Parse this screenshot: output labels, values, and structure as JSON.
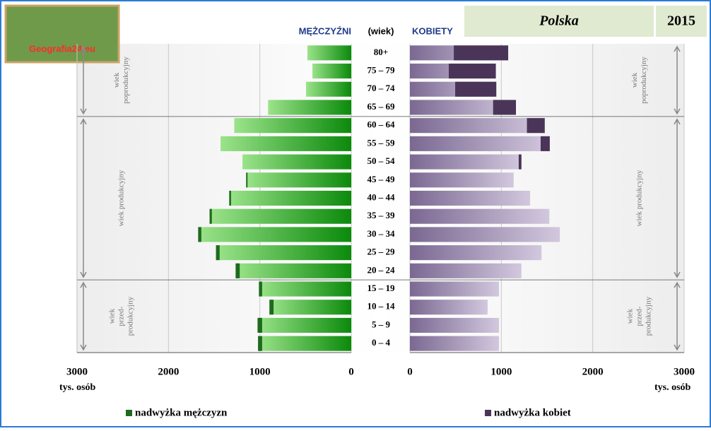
{
  "logo": "Geografia24.eu",
  "chart_data": {
    "type": "pyramid",
    "left_title": "MĘŻCZYŹNI",
    "center_title": "(wiek)",
    "right_title": "KOBIETY",
    "region": "Polska",
    "year": "2015",
    "x_label": "tys. osób",
    "categories": [
      "80+",
      "75 – 79",
      "70 – 74",
      "65 – 69",
      "60 – 64",
      "55 – 59",
      "50 – 54",
      "45 – 49",
      "40 – 44",
      "35 – 39",
      "30 – 34",
      "25 – 29",
      "20 – 24",
      "15 – 19",
      "10 – 14",
      "5 – 9",
      "0 – 4"
    ],
    "series": [
      {
        "name": "nadwyżka mężczyzn",
        "color": "#1e6b1e",
        "values": [
          480,
          425,
          495,
          910,
          1280,
          1430,
          1190,
          1150,
          1335,
          1550,
          1675,
          1480,
          1265,
          1010,
          895,
          1025,
          1020
        ]
      },
      {
        "name": "nadwyżka kobiet",
        "color": "#4a3558",
        "values": [
          1075,
          940,
          945,
          1160,
          1475,
          1530,
          1220,
          1135,
          1315,
          1525,
          1640,
          1440,
          1220,
          975,
          850,
          975,
          975
        ]
      }
    ],
    "xlim": [
      0,
      3000
    ],
    "xticks": [
      0,
      1000,
      2000,
      3000
    ],
    "grid": true,
    "age_groups": [
      [
        "wiek",
        "poprodukcyjny"
      ],
      [
        "wiek produkcyjny"
      ],
      [
        "wiek",
        "przed-",
        "produkcyjny"
      ]
    ]
  }
}
